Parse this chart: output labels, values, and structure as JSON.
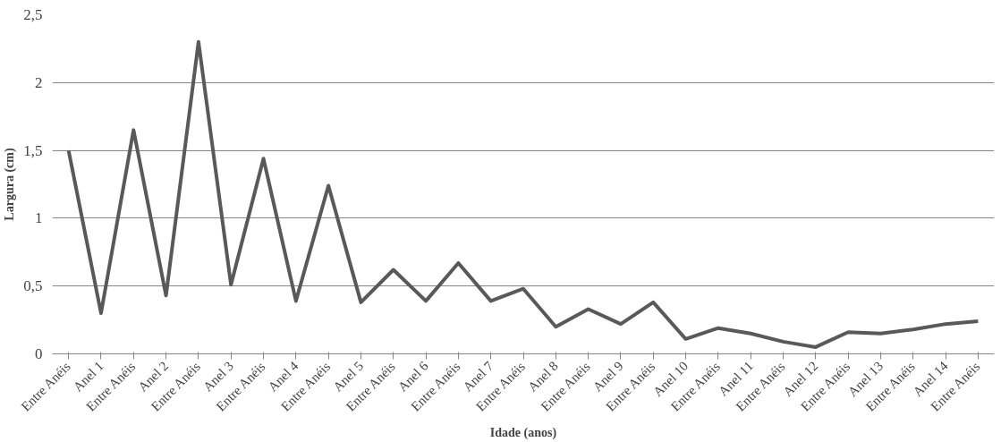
{
  "chart_data": {
    "type": "line",
    "xlabel": "Idade (anos)",
    "ylabel": "Largura (cm)",
    "categories": [
      "Entre Anéis",
      "Anel 1",
      "Entre Anéis",
      "Anel 2",
      "Entre Anéis",
      "Anel 3",
      "Entre Anéis",
      "Anel 4",
      "Entre Anéis",
      "Anel 5",
      "Entre Anéis",
      "Anel 6",
      "Entre Anéis",
      "Anel 7",
      "Entre Anéis",
      "Anel 8",
      "Entre Anéis",
      "Anel 9",
      "Entre Anéis",
      "Anel 10",
      "Entre Anéis",
      "Anel 11",
      "Entre Anéis",
      "Anel 12",
      "Entre Anéis",
      "Anel 13",
      "Entre Anéis",
      "Anel 14",
      "Entre Anéis"
    ],
    "series": [
      {
        "color": "#595959",
        "values": [
          1.5,
          0.3,
          1.65,
          0.43,
          2.3,
          0.51,
          1.44,
          0.39,
          1.24,
          0.38,
          0.62,
          0.39,
          0.67,
          0.39,
          0.48,
          0.2,
          0.33,
          0.22,
          0.38,
          0.11,
          0.19,
          0.15,
          0.09,
          0.05,
          0.16,
          0.15,
          0.18,
          0.22,
          0.24
        ]
      }
    ],
    "ylim": [
      0,
      2.5
    ],
    "yticks": [
      0,
      {
        "value": 0.5,
        "label": "0,5"
      },
      1,
      {
        "value": 1.5,
        "label": "1,5"
      },
      2,
      {
        "value": 2.5,
        "label": "2,5"
      }
    ],
    "grid": "y",
    "marker": "none",
    "line_style": "solid"
  }
}
